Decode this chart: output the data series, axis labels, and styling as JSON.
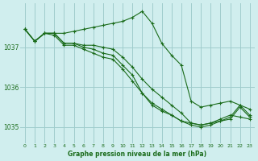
{
  "bg_color": "#d0eeee",
  "grid_color": "#a0cccc",
  "line_color": "#1a6b1a",
  "xlabel": "Graphe pression niveau de la mer (hPa)",
  "xlim": [
    -0.5,
    23.5
  ],
  "ylim": [
    1034.6,
    1038.1
  ],
  "yticks": [
    1035,
    1036,
    1037
  ],
  "xticks": [
    0,
    1,
    2,
    3,
    4,
    5,
    6,
    7,
    8,
    9,
    10,
    11,
    12,
    13,
    14,
    15,
    16,
    17,
    18,
    19,
    20,
    21,
    22,
    23
  ],
  "series": [
    {
      "x": [
        0,
        1,
        2,
        3,
        4,
        5,
        6,
        7,
        8,
        9,
        10,
        11,
        12,
        13,
        14,
        15,
        16,
        17,
        18,
        19,
        20,
        21,
        22,
        23
      ],
      "y": [
        1037.45,
        1037.15,
        1037.35,
        1037.35,
        1037.35,
        1037.4,
        1037.45,
        1037.5,
        1037.55,
        1037.6,
        1037.65,
        1037.75,
        1037.9,
        1037.6,
        1037.1,
        1036.8,
        1036.55,
        1035.65,
        1035.5,
        1035.55,
        1035.6,
        1035.65,
        1035.55,
        1035.45
      ]
    },
    {
      "x": [
        0,
        1,
        2,
        3,
        4,
        5,
        6,
        7,
        8,
        9,
        10,
        11,
        12,
        13,
        14,
        15,
        16,
        17,
        18,
        19,
        20,
        21,
        22,
        23
      ],
      "y": [
        1037.45,
        1037.15,
        1037.35,
        1037.35,
        1037.1,
        1037.1,
        1037.0,
        1036.95,
        1036.85,
        1036.8,
        1036.55,
        1036.3,
        1035.85,
        1035.55,
        1035.4,
        1035.3,
        1035.15,
        1035.1,
        1035.05,
        1035.1,
        1035.2,
        1035.3,
        1035.25,
        1035.2
      ]
    },
    {
      "x": [
        0,
        1,
        2,
        3,
        4,
        5,
        6,
        7,
        8,
        9,
        10,
        11,
        12,
        13,
        14,
        15,
        16,
        17,
        18,
        19,
        20,
        21,
        22,
        23
      ],
      "y": [
        1037.45,
        1037.15,
        1037.35,
        1037.35,
        1037.1,
        1037.1,
        1037.05,
        1037.05,
        1037.0,
        1036.95,
        1036.75,
        1036.5,
        1036.2,
        1035.95,
        1035.75,
        1035.55,
        1035.35,
        1035.1,
        1035.05,
        1035.1,
        1035.15,
        1035.25,
        1035.55,
        1035.3
      ]
    },
    {
      "x": [
        0,
        1,
        2,
        3,
        4,
        5,
        6,
        7,
        8,
        9,
        10,
        11,
        12,
        13,
        14,
        15,
        16,
        17,
        18,
        19,
        20,
        21,
        22,
        23
      ],
      "y": [
        1037.45,
        1037.15,
        1037.35,
        1037.3,
        1037.05,
        1037.05,
        1036.95,
        1036.85,
        1036.75,
        1036.7,
        1036.45,
        1036.15,
        1035.85,
        1035.6,
        1035.45,
        1035.3,
        1035.15,
        1035.05,
        1035.0,
        1035.05,
        1035.15,
        1035.2,
        1035.5,
        1035.25
      ]
    }
  ]
}
